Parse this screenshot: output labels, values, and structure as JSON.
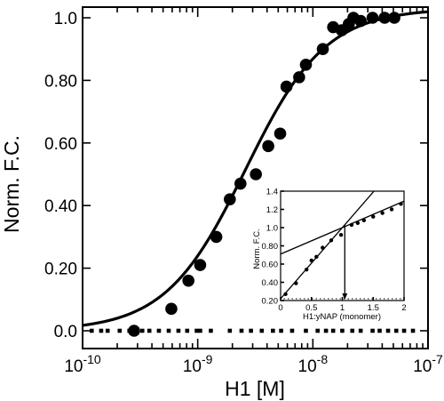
{
  "chart_data": [
    {
      "type": "scatter",
      "title": "",
      "xlabel": "H1 [M]",
      "ylabel": "Norm. F.C.",
      "x_scale": "log",
      "xlim": [
        1e-10,
        1e-07
      ],
      "ylim": [
        0,
        1.05
      ],
      "x_tick_labels": [
        "10-10",
        "10-9",
        "10-8",
        "10-7"
      ],
      "y_tick_labels": [
        "0.0",
        "0.20",
        "0.40",
        "0.60",
        "0.80",
        "1.0"
      ],
      "y_ticks": [
        0,
        0.2,
        0.4,
        0.6,
        0.8,
        1.0
      ],
      "series": [
        {
          "style": "large-filled-circles",
          "points": [
            [
              2.8e-10,
              0.0
            ],
            [
              5.9e-10,
              0.07
            ],
            [
              8.3e-10,
              0.16
            ],
            [
              1.05e-09,
              0.21
            ],
            [
              1.45e-09,
              0.3
            ],
            [
              1.9e-09,
              0.42
            ],
            [
              2.35e-09,
              0.47
            ],
            [
              3.2e-09,
              0.5
            ],
            [
              4.1e-09,
              0.59
            ],
            [
              5.2e-09,
              0.63
            ],
            [
              5.9e-09,
              0.78
            ],
            [
              7.6e-09,
              0.81
            ],
            [
              8.7e-09,
              0.85
            ],
            [
              1.22e-08,
              0.9
            ],
            [
              1.5e-08,
              0.97
            ],
            [
              1.78e-08,
              0.96
            ],
            [
              2.05e-08,
              0.98
            ],
            [
              2.25e-08,
              1.0
            ],
            [
              2.6e-08,
              0.99
            ],
            [
              3.3e-08,
              1.0
            ],
            [
              4.2e-08,
              1.0
            ],
            [
              5.1e-08,
              1.0
            ]
          ]
        },
        {
          "style": "small-squares-baseline",
          "x": [
            1.2e-10,
            1.45e-10,
            1.65e-10,
            2.1e-10,
            2.55e-10,
            3.3e-10,
            3.8e-10,
            4.6e-10,
            5.6e-10,
            6.8e-10,
            8.1e-10,
            9.8e-10,
            1.05e-09,
            1.3e-09,
            1.9e-09,
            2.4e-09,
            2.9e-09,
            3.6e-09,
            4.5e-09,
            5.3e-09,
            6.6e-09,
            8.7e-09,
            1.1e-08,
            1.3e-08,
            1.5e-08,
            1.8e-08,
            2.2e-08,
            2.6e-08,
            3.3e-08,
            3.8e-08,
            4.5e-08,
            5.3e-08,
            6.2e-08,
            7.4e-08
          ],
          "y": 0.0
        },
        {
          "style": "fit-curve",
          "model": "hill",
          "kd": 2.6e-09,
          "hill_n": 1.25,
          "max": 1.03
        }
      ]
    },
    {
      "type": "scatter",
      "title": "",
      "xlabel": "H1:yNAP (monomer)",
      "ylabel": "Norm. F.C.",
      "xlim": [
        0,
        2
      ],
      "ylim": [
        0.2,
        1.4
      ],
      "x_tick_labels": [
        "0",
        "0.5",
        "1",
        "1.5",
        "2"
      ],
      "y_tick_labels": [
        "0.20",
        "0.40",
        "0.60",
        "0.80",
        "1.0",
        "1.2",
        "1.4"
      ],
      "x_ticks": [
        0,
        0.5,
        1,
        1.5,
        2
      ],
      "y_ticks": [
        0.2,
        0.4,
        0.6,
        0.8,
        1.0,
        1.2,
        1.4
      ],
      "series": [
        {
          "style": "small-filled-circles",
          "points": [
            [
              0.08,
              0.27
            ],
            [
              0.25,
              0.39
            ],
            [
              0.42,
              0.54
            ],
            [
              0.5,
              0.64
            ],
            [
              0.58,
              0.68
            ],
            [
              0.68,
              0.78
            ],
            [
              0.82,
              0.86
            ],
            [
              0.98,
              0.92
            ],
            [
              1.15,
              1.03
            ],
            [
              1.25,
              1.05
            ],
            [
              1.35,
              1.08
            ],
            [
              1.5,
              1.12
            ],
            [
              1.65,
              1.16
            ],
            [
              1.8,
              1.2
            ],
            [
              1.95,
              1.26
            ]
          ]
        },
        {
          "style": "fit-line-steep",
          "slope": 0.78,
          "intercept": 0.22
        },
        {
          "style": "fit-line-shallow",
          "slope": 0.29,
          "intercept": 0.71
        },
        {
          "style": "drop-arrow",
          "x": 1.04,
          "from_y": 1.03,
          "to_y": 0.2
        }
      ]
    }
  ]
}
